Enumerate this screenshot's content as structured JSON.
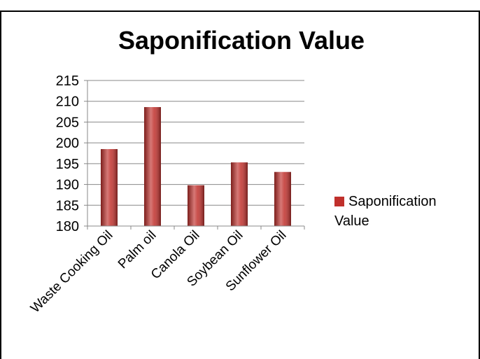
{
  "chart_data": {
    "type": "bar",
    "title": "Saponification Value",
    "categories": [
      "Waste Cooking Oil",
      "Palm oil",
      "Canola Oil",
      "Soybean Oil",
      "Sunflower Oil"
    ],
    "series": [
      {
        "name": "Saponification Value",
        "color": "#c0302c",
        "values": [
          198.5,
          208.6,
          189.8,
          195.3,
          193.0
        ]
      }
    ],
    "ylim": [
      180,
      215
    ],
    "yticks": [
      180,
      185,
      190,
      195,
      200,
      205,
      210,
      215
    ],
    "grid": true,
    "legend": "right"
  }
}
